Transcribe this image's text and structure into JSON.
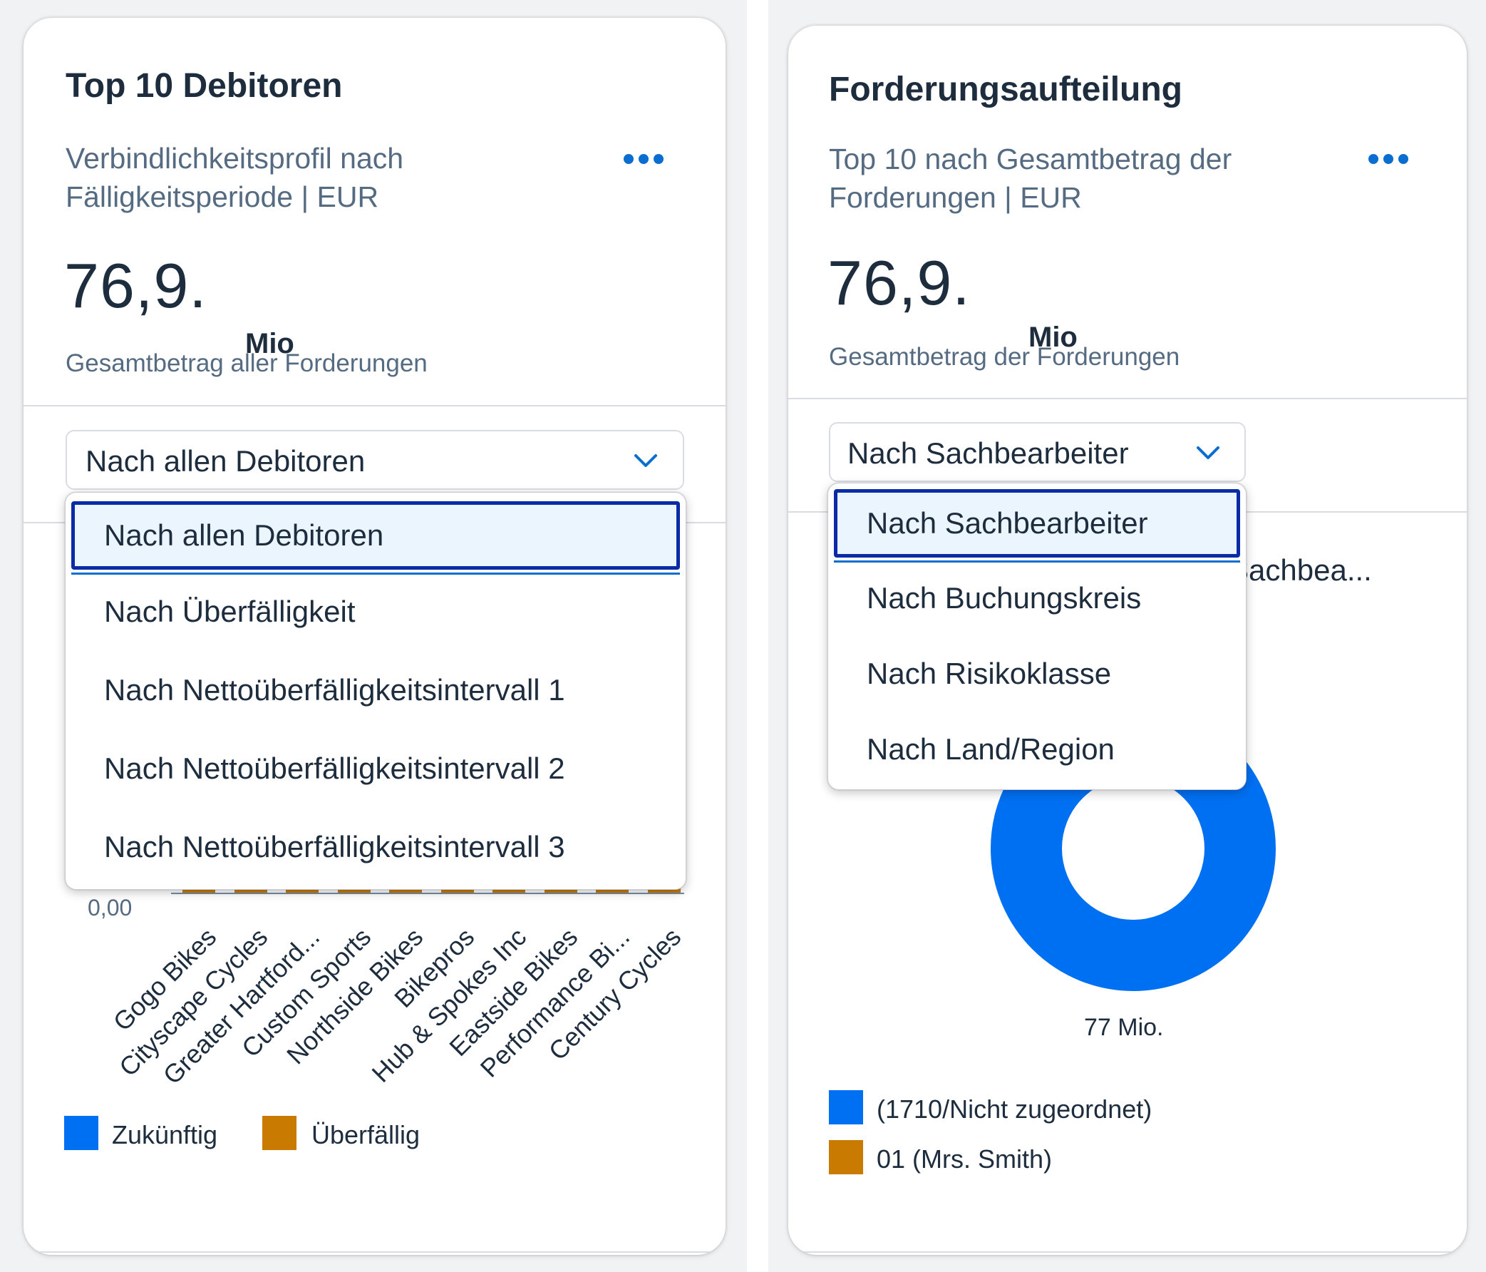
{
  "cards": [
    {
      "title": "Top 10 Debitoren",
      "subtitle_line1": "Verbindlichkeitsprofil nach",
      "subtitle_line2": "Fälligkeitsperiode | EUR",
      "kpi_value": "76,9.",
      "kpi_unit": "Mio",
      "kpi_label": "Gesamtbetrag aller Forderungen",
      "select_value": "Nach allen Debitoren",
      "dropdown_options": [
        "Nach allen Debitoren",
        "Nach Überfälligkeit",
        "Nach Nettoüberfälligkeitsintervall 1",
        "Nach Nettoüberfälligkeitsintervall 2",
        "Nach Nettoüberfälligkeitsintervall 3"
      ],
      "selected_index": 0
    },
    {
      "title": "Forderungsaufteilung",
      "subtitle_line1": "Top 10 nach Gesamtbetrag der",
      "subtitle_line2": "Forderungen | EUR",
      "kpi_value": "76,9.",
      "kpi_unit": "Mio",
      "kpi_label": "Gesamtbetrag der Forderungen",
      "select_value": "Nach Sachbearbeiter",
      "dropdown_options": [
        "Nach Sachbearbeiter",
        "Nach Buchungskreis",
        "Nach Risikoklasse",
        "Nach Land/Region"
      ],
      "selected_index": 0,
      "partial_chart_title": "n Sachbea..."
    }
  ],
  "colors": {
    "accent": "#0a6ed1",
    "series_blue": "#0070f2",
    "series_orange": "#c87b00",
    "focus_border": "#0b2aa5",
    "selected_bg": "#ebf5fe"
  },
  "chart_data": [
    {
      "type": "bar",
      "categories": [
        "Gogo Bikes",
        "Cityscape Cycles",
        "Greater Hartford...",
        "Custom Sports",
        "Northside Bikes",
        "Bikepros",
        "Hub & Spokes Inc",
        "Eastside Bikes",
        "Performance Bi...",
        "Century Cycles"
      ],
      "series": [
        {
          "name": "Zukünftig",
          "color": "#0070f2",
          "values": [
            0,
            0,
            0,
            0,
            0,
            0,
            0,
            0,
            0,
            0
          ]
        },
        {
          "name": "Überfällig",
          "color": "#c87b00",
          "values": [
            0,
            0,
            0,
            0,
            0,
            0,
            0,
            0,
            0,
            0
          ]
        }
      ],
      "y_min_label": "0,00",
      "legend": "bottom-left",
      "note_values": "bars mostly hidden behind dropdown; visible portion near zero"
    },
    {
      "type": "pie",
      "donut": true,
      "slices": [
        {
          "name": "(1710/Nicht zugeordnet)",
          "color": "#0070f2",
          "value": 77
        },
        {
          "name": "01 (Mrs. Smith)",
          "color": "#c87b00",
          "value": 0
        }
      ],
      "center_label": "77 Mio.",
      "legend": "bottom-left"
    }
  ]
}
